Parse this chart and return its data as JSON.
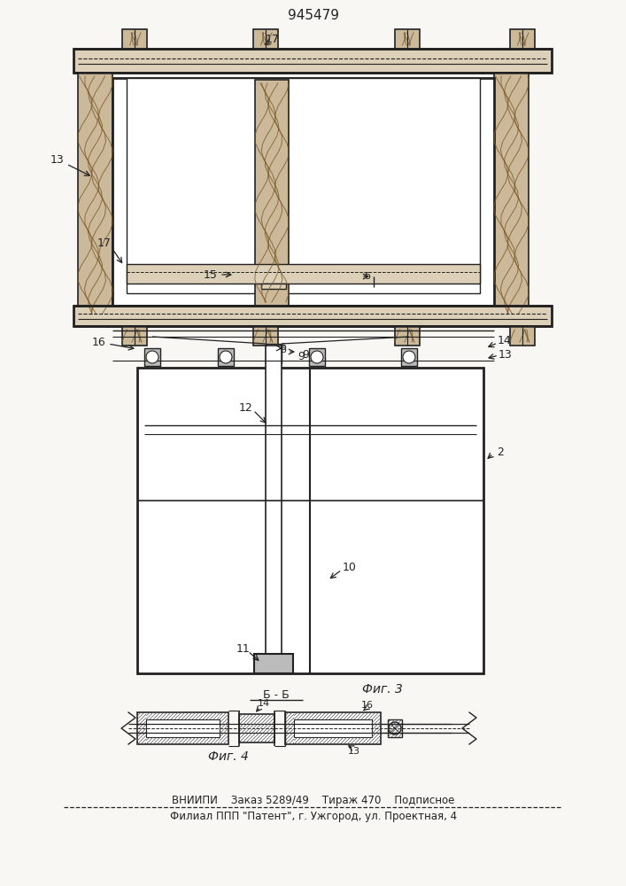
{
  "title": "945479",
  "fig3_label": "Фиг. 3",
  "fig4_label": "Фиг. 4",
  "section_label": "Б - Б",
  "footer_line1": "ВНИИПИ    Заказ 5289/49    Тираж 470    Подписное",
  "footer_line2": "Филиал ППП \"Патент\", г. Ужгород, ул. Проектная, 4",
  "bg_color": "#f8f7f4",
  "line_color": "#222222",
  "wood_fill": "#cbb99a",
  "wood_grain": "#7a5a2a",
  "beam_fill": "#ddd0b8",
  "white_fill": "#ffffff",
  "grey_fill": "#bbbbbb"
}
